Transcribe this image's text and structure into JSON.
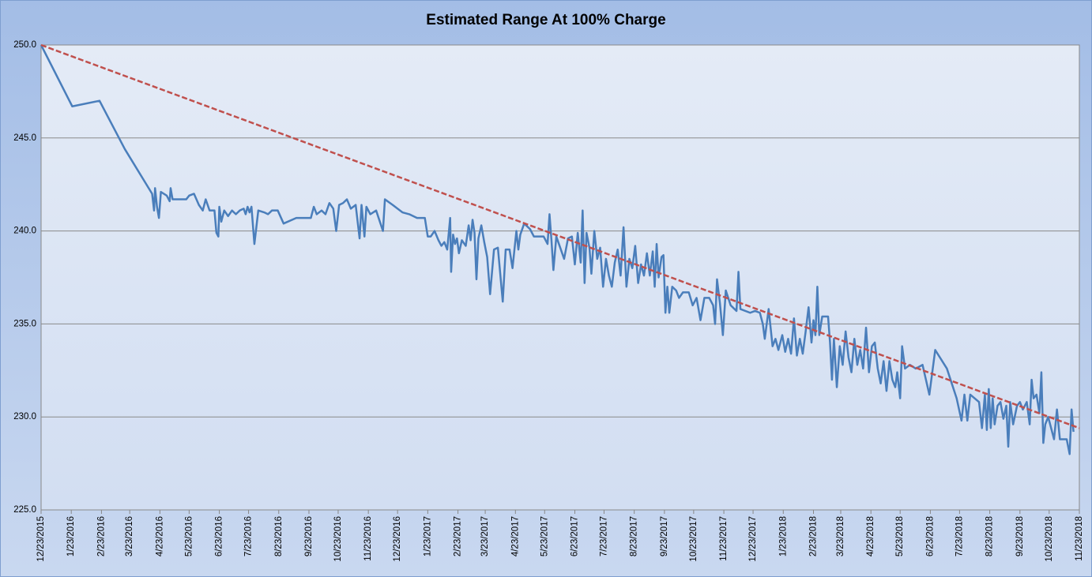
{
  "chart_data": {
    "type": "line",
    "title": "Estimated Range At 100% Charge",
    "ylim": [
      225,
      250
    ],
    "yticks": [
      {
        "value": 225,
        "label": "225.0"
      },
      {
        "value": 230,
        "label": "230.0"
      },
      {
        "value": 235,
        "label": "235.0"
      },
      {
        "value": 240,
        "label": "240.0"
      },
      {
        "value": 245,
        "label": "245.0"
      },
      {
        "value": 250,
        "label": "250.0"
      }
    ],
    "xlim": [
      "12/23/2015",
      "11/23/2018"
    ],
    "xticks": [
      "12/23/2015",
      "1/23/2016",
      "2/23/2016",
      "3/23/2016",
      "4/23/2016",
      "5/23/2016",
      "6/23/2016",
      "7/23/2016",
      "8/23/2016",
      "9/23/2016",
      "10/23/2016",
      "11/23/2016",
      "12/23/2016",
      "1/23/2017",
      "2/23/2017",
      "3/23/2017",
      "4/23/2017",
      "5/23/2017",
      "6/23/2017",
      "7/23/2017",
      "8/23/2017",
      "9/23/2017",
      "10/23/2017",
      "11/23/2017",
      "12/23/2017",
      "1/23/2018",
      "2/23/2018",
      "3/23/2018",
      "4/23/2018",
      "5/23/2018",
      "6/23/2018",
      "7/23/2018",
      "8/23/2018",
      "9/23/2018",
      "10/23/2018",
      "11/23/2018"
    ],
    "grid": true,
    "series": [
      {
        "color": "#4a7ebb",
        "line_style": "solid",
        "x": [
          "12/23/2015",
          "1/24/2016",
          "2/21/2016",
          "3/18/2016",
          "4/15/2016",
          "4/17/2016",
          "4/18/2016",
          "4/20/2016",
          "4/22/2016",
          "4/24/2016",
          "4/30/2016",
          "5/3/2016",
          "5/4/2016",
          "5/6/2016",
          "5/20/2016",
          "5/23/2016",
          "5/28/2016",
          "6/2/2016",
          "6/6/2016",
          "6/9/2016",
          "6/13/2016",
          "6/18/2016",
          "6/20/2016",
          "6/22/2016",
          "6/23/2016",
          "6/25/2016",
          "6/28/2016",
          "7/2/2016",
          "7/6/2016",
          "7/10/2016",
          "7/14/2016",
          "7/18/2016",
          "7/20/2016",
          "7/22/2016",
          "7/24/2016",
          "7/26/2016",
          "7/29/2016",
          "8/2/2016",
          "8/8/2016",
          "8/12/2016",
          "8/16/2016",
          "8/22/2016",
          "8/28/2016",
          "9/10/2016",
          "9/25/2016",
          "9/28/2016",
          "10/1/2016",
          "10/6/2016",
          "10/10/2016",
          "10/14/2016",
          "10/18/2016",
          "10/21/2016",
          "10/24/2016",
          "10/28/2016",
          "11/1/2016",
          "11/5/2016",
          "11/10/2016",
          "11/14/2016",
          "11/16/2016",
          "11/19/2016",
          "11/21/2016",
          "11/25/2016",
          "12/1/2016",
          "12/8/2016",
          "12/10/2016",
          "12/18/2016",
          "12/28/2016",
          "1/4/2017",
          "1/12/2017",
          "1/20/2017",
          "1/23/2017",
          "1/26/2017",
          "1/30/2017",
          "2/3/2017",
          "2/6/2017",
          "2/9/2017",
          "2/12/2017",
          "2/15/2017",
          "2/16/2017",
          "2/18/2017",
          "2/20/2017",
          "2/22/2017",
          "2/24/2017",
          "2/27/2017",
          "3/3/2017",
          "3/6/2017",
          "3/8/2017",
          "3/10/2017",
          "3/12/2017",
          "3/14/2017",
          "3/16/2017",
          "3/19/2017",
          "3/22/2017",
          "3/25/2017",
          "3/28/2017",
          "4/1/2017",
          "4/5/2017",
          "4/10/2017",
          "4/13/2017",
          "4/17/2017",
          "4/20/2017",
          "4/24/2017",
          "4/26/2017",
          "4/28/2017",
          "5/2/2017",
          "5/8/2017",
          "5/12/2017",
          "5/16/2017",
          "5/22/2017",
          "5/26/2017",
          "5/28/2017",
          "5/30/2017",
          "6/1/2017",
          "6/4/2017",
          "6/8/2017",
          "6/12/2017",
          "6/16/2017",
          "6/20/2017",
          "6/23/2017",
          "6/26/2017",
          "6/29/2017",
          "7/1/2017",
          "7/3/2017",
          "7/5/2017",
          "7/8/2017",
          "7/10/2017",
          "7/13/2017",
          "7/16/2017",
          "7/19/2017",
          "7/22/2017",
          "7/25/2017",
          "7/28/2017",
          "7/31/2017",
          "8/3/2017",
          "8/6/2017",
          "8/9/2017",
          "8/12/2017",
          "8/15/2017",
          "8/18/2017",
          "8/21/2017",
          "8/24/2017",
          "8/27/2017",
          "8/30/2017",
          "9/2/2017",
          "9/5/2017",
          "9/8/2017",
          "9/11/2017",
          "9/13/2017",
          "9/15/2017",
          "9/17/2017",
          "9/20/2017",
          "9/22/2017",
          "9/24/2017",
          "9/26/2017",
          "9/28/2017",
          "10/1/2017",
          "10/5/2017",
          "10/8/2017",
          "10/12/2017",
          "10/18/2017",
          "10/22/2017",
          "10/26/2017",
          "10/30/2017",
          "11/3/2017",
          "11/8/2017",
          "11/12/2017",
          "11/14/2017",
          "11/16/2017",
          "11/19/2017",
          "11/22/2017",
          "11/25/2017",
          "11/30/2017",
          "12/6/2017",
          "12/8/2017",
          "12/10/2017",
          "12/20/2017",
          "12/25/2017",
          "12/30/2017",
          "1/2/2018",
          "1/4/2018",
          "1/8/2018",
          "1/12/2018",
          "1/15/2018",
          "1/18/2018",
          "1/22/2018",
          "1/25/2018",
          "1/28/2018",
          "1/31/2018",
          "2/3/2018",
          "2/6/2018",
          "2/9/2018",
          "2/12/2018",
          "2/15/2018",
          "2/18/2018",
          "2/21/2018",
          "2/23/2018",
          "2/25/2018",
          "2/27/2018",
          "3/1/2018",
          "3/4/2018",
          "3/10/2018",
          "3/12/2018",
          "3/14/2018",
          "3/16/2018",
          "3/19/2018",
          "3/22/2018",
          "3/25/2018",
          "3/28/2018",
          "3/31/2018",
          "4/3/2018",
          "4/6/2018",
          "4/9/2018",
          "4/12/2018",
          "4/15/2018",
          "4/18/2018",
          "4/21/2018",
          "4/24/2018",
          "4/27/2018",
          "4/30/2018",
          "5/3/2018",
          "5/6/2018",
          "5/9/2018",
          "5/12/2018",
          "5/15/2018",
          "5/18/2018",
          "5/20/2018",
          "5/23/2018",
          "5/25/2018",
          "5/28/2018",
          "6/2/2018",
          "6/8/2018",
          "6/15/2018",
          "6/22/2018",
          "6/28/2018",
          "7/10/2018",
          "7/20/2018",
          "7/25/2018",
          "7/28/2018",
          "7/31/2018",
          "8/3/2018",
          "8/12/2018",
          "8/15/2018",
          "8/18/2018",
          "8/20/2018",
          "8/22/2018",
          "8/24/2018",
          "8/26/2018",
          "8/28/2018",
          "8/31/2018",
          "9/3/2018",
          "9/6/2018",
          "9/9/2018",
          "9/11/2018",
          "9/13/2018",
          "9/16/2018",
          "9/20/2018",
          "9/23/2018",
          "9/26/2018",
          "9/30/2018",
          "10/3/2018",
          "10/5/2018",
          "10/7/2018",
          "10/10/2018",
          "10/13/2018",
          "10/15/2018",
          "10/17/2018",
          "10/19/2018",
          "10/22/2018",
          "10/25/2018",
          "10/28/2018",
          "10/31/2018",
          "11/3/2018",
          "11/10/2018",
          "11/13/2018",
          "11/15/2018",
          "11/17/2018"
        ],
        "values": [
          250.0,
          246.7,
          247.0,
          244.4,
          242.0,
          241.1,
          242.3,
          241.3,
          240.7,
          242.1,
          241.9,
          241.6,
          242.3,
          241.7,
          241.7,
          241.9,
          242.0,
          241.4,
          241.1,
          241.7,
          241.1,
          241.1,
          239.9,
          239.7,
          241.3,
          240.5,
          241.1,
          240.8,
          241.1,
          240.9,
          241.1,
          241.2,
          240.9,
          241.3,
          241.0,
          241.3,
          239.3,
          241.1,
          241.0,
          240.9,
          241.1,
          241.1,
          240.4,
          240.7,
          240.7,
          241.3,
          240.9,
          241.1,
          240.9,
          241.5,
          241.2,
          240.0,
          241.4,
          241.5,
          241.7,
          241.2,
          241.4,
          239.6,
          241.4,
          239.7,
          241.3,
          240.9,
          241.1,
          240.0,
          241.7,
          241.4,
          241.0,
          240.9,
          240.7,
          240.7,
          239.7,
          239.7,
          240.0,
          239.5,
          239.2,
          239.4,
          239.0,
          240.7,
          237.8,
          239.8,
          239.3,
          239.6,
          238.8,
          239.5,
          239.2,
          240.3,
          239.5,
          240.6,
          239.9,
          237.4,
          239.6,
          240.3,
          239.4,
          238.6,
          236.6,
          239.0,
          239.1,
          236.2,
          239.0,
          239.0,
          238.0,
          240.0,
          239.0,
          239.8,
          240.4,
          240.1,
          239.7,
          239.7,
          239.7,
          239.3,
          240.9,
          239.5,
          237.9,
          239.7,
          239.1,
          238.5,
          239.6,
          239.7,
          238.2,
          239.9,
          238.3,
          241.1,
          237.2,
          239.9,
          239.1,
          237.7,
          240.0,
          238.5,
          239.1,
          237.0,
          238.5,
          237.6,
          237.0,
          238.3,
          239.0,
          237.6,
          240.2,
          237.0,
          238.5,
          238.0,
          239.2,
          237.2,
          238.2,
          237.6,
          238.8,
          237.6,
          238.9,
          237.0,
          239.3,
          237.5,
          238.6,
          238.7,
          235.6,
          237.0,
          235.6,
          237.0,
          236.8,
          236.4,
          236.7,
          236.7,
          236.0,
          236.4,
          235.2,
          236.4,
          236.4,
          236.0,
          235.0,
          237.4,
          236.1,
          234.4,
          236.8,
          236.0,
          235.7,
          237.8,
          235.8,
          235.6,
          235.7,
          235.6,
          235.0,
          234.2,
          235.8,
          233.8,
          234.2,
          233.6,
          234.4,
          233.5,
          234.2,
          233.4,
          235.3,
          233.3,
          234.2,
          233.4,
          234.6,
          235.9,
          234.0,
          235.2,
          234.4,
          237.0,
          234.4,
          235.4,
          235.4,
          234.0,
          232.0,
          234.2,
          231.6,
          233.8,
          232.8,
          234.6,
          233.2,
          232.4,
          234.2,
          232.8,
          233.6,
          232.6,
          234.8,
          232.4,
          233.8,
          234.0,
          232.6,
          231.8,
          233.0,
          231.4,
          233.0,
          232.0,
          231.6,
          232.4,
          231.0,
          233.8,
          232.6,
          232.8,
          232.6,
          232.8,
          231.2,
          233.6,
          232.6,
          231.0,
          229.8,
          231.2,
          229.8,
          231.2,
          230.8,
          229.4,
          231.2,
          229.3,
          231.5,
          229.4,
          231.0,
          229.6,
          230.6,
          230.8,
          229.9,
          230.6,
          228.4,
          230.8,
          229.6,
          230.6,
          230.8,
          230.4,
          230.8,
          229.6,
          232.0,
          231.0,
          231.2,
          230.2,
          232.4,
          228.6,
          229.6,
          230.0,
          229.4,
          228.8,
          230.4,
          228.8,
          228.8,
          228.0,
          230.4,
          229.2
        ]
      },
      {
        "color": "#c0504d",
        "line_style": "dashed",
        "x": [
          "12/23/2015",
          "11/23/2018"
        ],
        "values": [
          250.0,
          229.4
        ]
      }
    ]
  }
}
